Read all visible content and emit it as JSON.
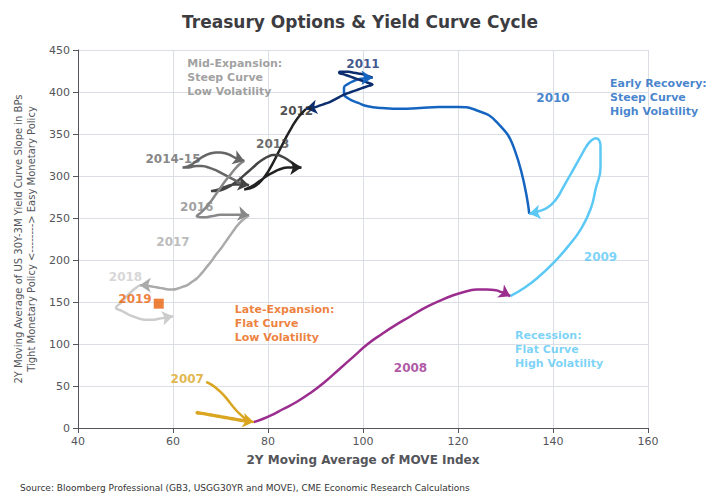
{
  "chart_data": {
    "type": "line",
    "title": "Treasury Options & Yield Curve Cycle",
    "xlabel": "2Y Moving Average of MOVE Index",
    "ylabel": "2Y Moving Average of US 30Y-3M Yield Curve Slope in BPs\nTight Monetary Policy <--------> Easy Monetary Policy",
    "source": "Source: Bloomberg Professional (GB3, USGG30YR and MOVE), CME Economic Research Calculations",
    "xlim": [
      40,
      160
    ],
    "ylim": [
      0,
      450
    ],
    "xticks": [
      40,
      60,
      80,
      100,
      120,
      140,
      160
    ],
    "yticks": [
      0,
      50,
      100,
      150,
      200,
      250,
      300,
      350,
      400,
      450
    ],
    "grid": true,
    "series": [
      {
        "name": "2007",
        "color": "#DAA520",
        "x": [
          67,
          68,
          69,
          70,
          71,
          72,
          73,
          74,
          75,
          76,
          75,
          74,
          73,
          72,
          71,
          70,
          69,
          68,
          67,
          66,
          65,
          65,
          66,
          67,
          68,
          69,
          70,
          71,
          72,
          73,
          74,
          75,
          76,
          77
        ],
        "values": [
          55,
          52,
          48,
          43,
          37,
          30,
          23,
          17,
          12,
          8,
          8,
          9,
          10,
          11,
          12,
          13,
          14,
          15,
          16,
          17,
          18,
          19,
          18,
          17,
          16,
          15,
          14,
          13,
          12,
          11,
          10,
          9,
          8,
          7
        ],
        "label_x": 63,
        "label_y": 58
      },
      {
        "name": "2008",
        "color": "#9B2D8E",
        "x": [
          77,
          79,
          81,
          83,
          86,
          89,
          92,
          95,
          98,
          101,
          104,
          107,
          110,
          113,
          116,
          119,
          122,
          124,
          126,
          128,
          129,
          130,
          131
        ],
        "values": [
          7,
          11,
          16,
          22,
          31,
          42,
          55,
          70,
          85,
          100,
          112,
          123,
          133,
          143,
          151,
          158,
          163,
          165,
          165,
          164,
          162,
          160,
          157
        ],
        "label_x": 110,
        "label_y": 72
      },
      {
        "name": "2009",
        "color": "#5BC8F5",
        "x": [
          131,
          134,
          137,
          140,
          143,
          146,
          148,
          149,
          150,
          150,
          149,
          148,
          147,
          146,
          145,
          144,
          143,
          142,
          141,
          140,
          139,
          138,
          137,
          136,
          135
        ],
        "values": [
          157,
          167,
          180,
          196,
          215,
          238,
          262,
          285,
          310,
          335,
          345,
          342,
          335,
          325,
          315,
          305,
          295,
          285,
          275,
          268,
          263,
          260,
          258,
          256,
          255
        ],
        "label_x": 150,
        "label_y": 203
      },
      {
        "name": "2010",
        "color": "#1565C0",
        "x": [
          135,
          132,
          128,
          124,
          120,
          116,
          112,
          108,
          104,
          101,
          99,
          97,
          96,
          96,
          97,
          98,
          99,
          100,
          101,
          102
        ],
        "values": [
          255,
          330,
          365,
          378,
          382,
          382,
          381,
          380,
          381,
          383,
          387,
          392,
          398,
          405,
          410,
          413,
          415,
          416,
          417,
          417
        ],
        "label_x": 140,
        "label_y": 393
      },
      {
        "name": "2011",
        "color": "#0D2E6E",
        "x": [
          102,
          101,
          100,
          99,
          98,
          97,
          96,
          95,
          95,
          96,
          97,
          98,
          99,
          100,
          101,
          102,
          101,
          100,
          99,
          98,
          97,
          96,
          95,
          94,
          93,
          92,
          91,
          90,
          89,
          88
        ],
        "values": [
          417,
          419,
          421,
          422,
          423,
          424,
          424,
          424,
          423,
          421,
          419,
          417,
          415,
          413,
          411,
          409,
          407,
          405,
          403,
          401,
          399,
          397,
          394,
          391,
          388,
          386,
          384,
          382,
          381,
          380
        ],
        "label_x": 100,
        "label_y": 433
      },
      {
        "name": "2012",
        "color": "#222222",
        "x": [
          88,
          87,
          86,
          85,
          84,
          83,
          82,
          81,
          80,
          79,
          78,
          77,
          76,
          75,
          76,
          77,
          78,
          79,
          80,
          81,
          82,
          83,
          84,
          85,
          86,
          87
        ],
        "values": [
          380,
          374,
          367,
          358,
          348,
          337,
          326,
          315,
          305,
          297,
          291,
          287,
          285,
          284,
          286,
          289,
          293,
          297,
          301,
          304,
          307,
          309,
          310,
          310,
          310,
          310
        ],
        "label_x": 86,
        "label_y": 377
      },
      {
        "name": "2013",
        "color": "#444444",
        "x": [
          87,
          86,
          85,
          84,
          83,
          82,
          81,
          80,
          79,
          78,
          77,
          76,
          75,
          74,
          73,
          72,
          71,
          70,
          69,
          68,
          69,
          70,
          71,
          72,
          73,
          74,
          75,
          76
        ],
        "values": [
          310,
          312,
          316,
          320,
          323,
          325,
          325,
          323,
          320,
          316,
          311,
          306,
          301,
          296,
          292,
          288,
          285,
          283,
          282,
          282,
          283,
          285,
          287,
          289,
          290,
          290,
          290,
          289
        ],
        "label_x": 81,
        "label_y": 338
      },
      {
        "name": "2014-15",
        "color": "#666666",
        "x": [
          76,
          75,
          74,
          73,
          72,
          71,
          70,
          69,
          68,
          67,
          66,
          65,
          64,
          63,
          62,
          63,
          64,
          65,
          66,
          67,
          68,
          69,
          70,
          71,
          72,
          73,
          74,
          75
        ],
        "values": [
          289,
          290,
          292,
          295,
          298,
          301,
          304,
          307,
          309,
          311,
          312,
          312,
          311,
          310,
          310,
          311,
          314,
          318,
          322,
          325,
          327,
          328,
          328,
          327,
          325,
          322,
          320,
          318
        ],
        "label_x": 60,
        "label_y": 320
      },
      {
        "name": "2016",
        "color": "#888888",
        "x": [
          75,
          74,
          73,
          72,
          71,
          70,
          69,
          68,
          67,
          66,
          65,
          66,
          67,
          68,
          69,
          70,
          71,
          72,
          73,
          74,
          75,
          76
        ],
        "values": [
          318,
          314,
          308,
          301,
          294,
          286,
          278,
          270,
          263,
          257,
          252,
          251,
          251,
          252,
          253,
          254,
          254,
          254,
          254,
          254,
          254,
          253
        ],
        "label_x": 65,
        "label_y": 263
      },
      {
        "name": "2017",
        "color": "#aaaaaa",
        "x": [
          76,
          75,
          74,
          73,
          72,
          71,
          70,
          69,
          68,
          67,
          66,
          65,
          64,
          63,
          62,
          61,
          60,
          59,
          58,
          57,
          56,
          55,
          54,
          53
        ],
        "values": [
          253,
          249,
          244,
          237,
          229,
          221,
          213,
          206,
          198,
          191,
          184,
          178,
          174,
          170,
          168,
          166,
          165,
          165,
          166,
          167,
          168,
          169,
          170,
          170
        ],
        "label_x": 60,
        "label_y": 222
      },
      {
        "name": "2018",
        "color": "#cccccc",
        "x": [
          53,
          52,
          51,
          50,
          49,
          48,
          49,
          50,
          51,
          52,
          53,
          54,
          55,
          56,
          57,
          58,
          59,
          60
        ],
        "values": [
          170,
          166,
          161,
          155,
          149,
          143,
          140,
          137,
          134,
          132,
          130,
          129,
          129,
          129,
          130,
          131,
          132,
          133
        ],
        "label_x": 50,
        "label_y": 180
      },
      {
        "name": "2019",
        "type": "scatter",
        "marker": "square",
        "color": "#E8610A",
        "x": [
          57
        ],
        "values": [
          148
        ],
        "label_x": 52,
        "label_y": 154
      }
    ],
    "annotations": [
      {
        "text": "Mid-Expansion:\nSteep Curve\nLow Volatility",
        "x": 63,
        "y": 442,
        "color": "#888888"
      },
      {
        "text": "Early Recovery:\nSteep Curve\nHigh Volatility",
        "x": 152,
        "y": 418,
        "color": "#1565C0"
      },
      {
        "text": "Late-Expansion:\nFlat Curve\nLow Volatility",
        "x": 73,
        "y": 150,
        "color": "#E8610A"
      },
      {
        "text": "Recession:\nFlat Curve\nHigh Volatility",
        "x": 132,
        "y": 118,
        "color": "#5BC8F5"
      }
    ]
  }
}
